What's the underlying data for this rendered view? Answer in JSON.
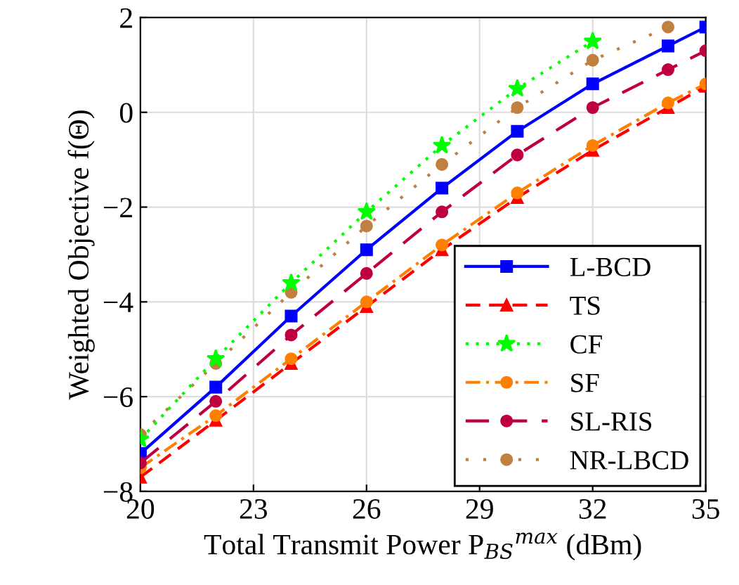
{
  "chart_data": {
    "type": "line",
    "xlabel": "Total Transmit Power P$_{BS}$$^{max}$ (dBm)",
    "ylabel": "Weighted Objective f(Θ)",
    "x": [
      20,
      22,
      24,
      26,
      28,
      30,
      32,
      34,
      35
    ],
    "xlim": [
      20,
      35
    ],
    "xticks": [
      20,
      23,
      26,
      29,
      32,
      35
    ],
    "ylim": [
      -8,
      2
    ],
    "yticks": [
      -8,
      -6,
      -4,
      -2,
      0,
      2
    ],
    "grid": true,
    "legend": "bottom right",
    "series": [
      {
        "name": "L-BCD",
        "color": "#0000ff",
        "marker": "square",
        "line_style": "solid",
        "values": [
          -7.2,
          -5.8,
          -4.3,
          -2.9,
          -1.6,
          -0.4,
          0.6,
          1.4,
          1.8
        ]
      },
      {
        "name": "TS",
        "color": "#ff0000",
        "marker": "triangle",
        "line_style": "dashed",
        "values": [
          -7.7,
          -6.5,
          -5.3,
          -4.1,
          -2.9,
          -1.8,
          -0.8,
          0.1,
          0.55
        ]
      },
      {
        "name": "CF",
        "color": "#00ff00",
        "marker": "star",
        "line_style": "dotted",
        "values": [
          -6.9,
          -5.2,
          -3.6,
          -2.1,
          -0.7,
          0.5,
          1.5,
          null,
          null
        ]
      },
      {
        "name": "SF",
        "color": "#ff8000",
        "marker": "circle",
        "line_style": "dashdot",
        "values": [
          -7.5,
          -6.4,
          -5.2,
          -4.0,
          -2.8,
          -1.7,
          -0.7,
          0.2,
          0.6
        ]
      },
      {
        "name": "SL-RIS",
        "color": "#bf0040",
        "marker": "circle",
        "line_style": "longdash",
        "values": [
          -7.4,
          -6.1,
          -4.7,
          -3.4,
          -2.1,
          -0.9,
          0.1,
          0.9,
          1.3
        ]
      },
      {
        "name": "NR-LBCD",
        "color": "#bf8040",
        "marker": "circle",
        "line_style": "sparsedot",
        "values": [
          -6.8,
          -5.3,
          -3.8,
          -2.4,
          -1.1,
          0.1,
          1.1,
          1.8,
          null
        ]
      }
    ]
  }
}
